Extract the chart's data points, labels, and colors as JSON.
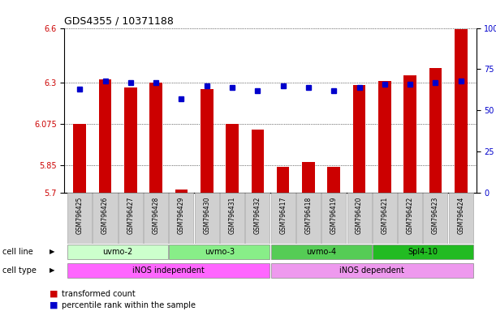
{
  "title": "GDS4355 / 10371188",
  "samples": [
    "GSM796425",
    "GSM796426",
    "GSM796427",
    "GSM796428",
    "GSM796429",
    "GSM796430",
    "GSM796431",
    "GSM796432",
    "GSM796417",
    "GSM796418",
    "GSM796419",
    "GSM796420",
    "GSM796421",
    "GSM796422",
    "GSM796423",
    "GSM796424"
  ],
  "transformed_count": [
    6.075,
    6.32,
    6.275,
    6.3,
    5.72,
    6.265,
    6.075,
    6.045,
    5.84,
    5.87,
    5.84,
    6.29,
    6.31,
    6.34,
    6.38,
    6.595
  ],
  "percentile_rank": [
    63,
    68,
    67,
    67,
    57,
    65,
    64,
    62,
    65,
    64,
    62,
    64,
    66,
    66,
    67,
    68
  ],
  "ylim_left": [
    5.7,
    6.6
  ],
  "yticks_left": [
    5.7,
    5.85,
    6.075,
    6.3,
    6.6
  ],
  "yticks_right": [
    0,
    25,
    50,
    75,
    100
  ],
  "yticks_right_labels": [
    "0",
    "25",
    "50",
    "75",
    "100%"
  ],
  "cell_line_groups": [
    {
      "label": "uvmo-2",
      "start": 0,
      "end": 3,
      "color": "#ccffcc"
    },
    {
      "label": "uvmo-3",
      "start": 4,
      "end": 7,
      "color": "#88ee88"
    },
    {
      "label": "uvmo-4",
      "start": 8,
      "end": 11,
      "color": "#55cc55"
    },
    {
      "label": "Spl4-10",
      "start": 12,
      "end": 15,
      "color": "#22bb22"
    }
  ],
  "cell_type_groups": [
    {
      "label": "iNOS independent",
      "start": 0,
      "end": 7,
      "color": "#ff66ff"
    },
    {
      "label": "iNOS dependent",
      "start": 8,
      "end": 15,
      "color": "#ee99ee"
    }
  ],
  "bar_color": "#cc0000",
  "dot_color": "#0000cc",
  "bar_bottom": 5.7,
  "bar_width": 0.5,
  "ytick_label_color_left": "#cc0000",
  "ytick_label_color_right": "#0000cc",
  "legend_items": [
    {
      "color": "#cc0000",
      "label": "transformed count"
    },
    {
      "color": "#0000cc",
      "label": "percentile rank within the sample"
    }
  ]
}
